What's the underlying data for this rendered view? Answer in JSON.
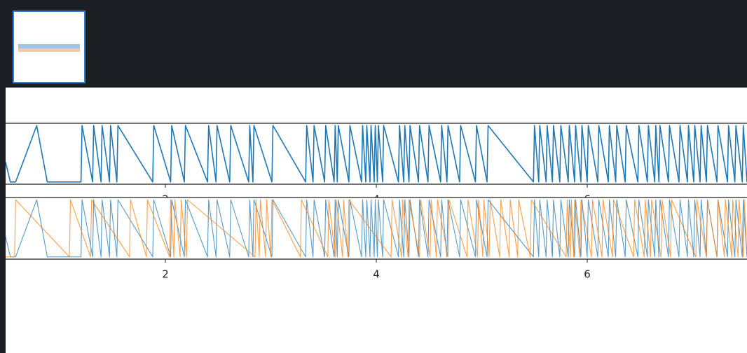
{
  "chart_data": [
    {
      "type": "line",
      "xlim": [
        0.485,
        7.515
      ],
      "ylim": [
        -0.04,
        1.04
      ],
      "xticks": [
        2,
        4,
        6
      ],
      "series": [
        {
          "color": "#1f77b4",
          "x": [
            0.485,
            0.53,
            0.58,
            0.78,
            0.88,
            1.2,
            1.21,
            1.31,
            1.32,
            1.39,
            1.4,
            1.47,
            1.48,
            1.54,
            1.55,
            1.88,
            1.89,
            2.05,
            2.06,
            2.18,
            2.19,
            2.4,
            2.41,
            2.48,
            2.49,
            2.61,
            2.62,
            2.79,
            2.8,
            2.83,
            2.84,
            3.01,
            3.02,
            3.33,
            3.34,
            3.4,
            3.41,
            3.51,
            3.52,
            3.6,
            3.61,
            3.63,
            3.64,
            3.74,
            3.75,
            3.86,
            3.87,
            3.9,
            3.91,
            3.94,
            3.95,
            3.98,
            3.99,
            4.01,
            4.02,
            4.06,
            4.07,
            4.21,
            4.22,
            4.26,
            4.27,
            4.31,
            4.32,
            4.4,
            4.41,
            4.49,
            4.5,
            4.61,
            4.62,
            4.67,
            4.68,
            4.79,
            4.8,
            4.94,
            4.95,
            5.05,
            5.06,
            5.49,
            5.5,
            5.54,
            5.55,
            5.61,
            5.62,
            5.67,
            5.68,
            5.74,
            5.75,
            5.82,
            5.83,
            5.88,
            5.89,
            5.94,
            5.95,
            6.0,
            6.01,
            6.1,
            6.11,
            6.2,
            6.21,
            6.27,
            6.28,
            6.36,
            6.37,
            6.48,
            6.49,
            6.57,
            6.58,
            6.64,
            6.65,
            6.68,
            6.69,
            6.77,
            6.78,
            6.87,
            6.88,
            6.95,
            6.96,
            7.01,
            7.02,
            7.07,
            7.08,
            7.13,
            7.14,
            7.23,
            7.24,
            7.33,
            7.34,
            7.4,
            7.41,
            7.47,
            7.48,
            7.515
          ],
          "values": [
            0.35,
            0,
            0,
            1,
            0,
            0,
            1,
            0,
            1,
            0,
            1,
            0,
            1,
            0,
            1,
            0,
            1,
            0,
            1,
            0,
            1,
            0,
            1,
            0,
            1,
            0,
            1,
            0,
            1,
            0,
            1,
            0,
            1,
            0,
            1,
            0,
            1,
            0,
            1,
            0,
            1,
            0,
            1,
            0,
            1,
            0,
            1,
            0,
            1,
            0,
            1,
            0,
            1,
            0,
            1,
            0,
            1,
            0,
            1,
            0,
            1,
            0,
            1,
            0,
            1,
            0,
            1,
            0,
            1,
            0,
            1,
            0,
            1,
            0,
            1,
            0,
            1,
            0,
            1,
            0,
            1,
            0,
            1,
            0,
            1,
            0,
            1,
            0,
            1,
            0,
            1,
            0,
            1,
            0,
            1,
            0,
            1,
            0,
            1,
            0,
            1,
            0,
            1,
            0,
            1,
            0,
            1,
            0,
            1,
            0,
            1,
            0,
            1,
            0,
            1,
            0,
            1,
            0,
            1,
            0,
            1,
            0,
            1,
            0,
            1,
            0,
            1,
            0,
            1,
            0,
            1,
            0
          ]
        }
      ]
    },
    {
      "type": "line",
      "xlim": [
        0.485,
        7.515
      ],
      "ylim": [
        -0.04,
        1.04
      ],
      "xticks": [
        2,
        4,
        6
      ],
      "series": [
        {
          "color": "#1f77b4",
          "x": [
            0.485,
            0.53,
            0.58,
            0.78,
            0.88,
            1.2,
            1.21,
            1.31,
            1.32,
            1.39,
            1.4,
            1.47,
            1.48,
            1.54,
            1.55,
            1.88,
            1.89,
            2.05,
            2.06,
            2.18,
            2.19,
            2.4,
            2.41,
            2.48,
            2.49,
            2.61,
            2.62,
            2.79,
            2.8,
            2.83,
            2.84,
            3.01,
            3.02,
            3.33,
            3.34,
            3.4,
            3.41,
            3.51,
            3.52,
            3.6,
            3.61,
            3.63,
            3.64,
            3.74,
            3.75,
            3.86,
            3.87,
            3.9,
            3.91,
            3.94,
            3.95,
            3.98,
            3.99,
            4.01,
            4.02,
            4.06,
            4.07,
            4.21,
            4.22,
            4.26,
            4.27,
            4.31,
            4.32,
            4.4,
            4.41,
            4.49,
            4.5,
            4.61,
            4.62,
            4.67,
            4.68,
            4.79,
            4.8,
            4.94,
            4.95,
            5.05,
            5.06,
            5.49,
            5.5,
            5.54,
            5.55,
            5.61,
            5.62,
            5.67,
            5.68,
            5.74,
            5.75,
            5.82,
            5.83,
            5.88,
            5.89,
            5.94,
            5.95,
            6.0,
            6.01,
            6.1,
            6.11,
            6.2,
            6.21,
            6.27,
            6.28,
            6.36,
            6.37,
            6.48,
            6.49,
            6.57,
            6.58,
            6.64,
            6.65,
            6.68,
            6.69,
            6.77,
            6.78,
            6.87,
            6.88,
            6.95,
            6.96,
            7.01,
            7.02,
            7.07,
            7.08,
            7.13,
            7.14,
            7.23,
            7.24,
            7.33,
            7.34,
            7.4,
            7.41,
            7.47,
            7.48,
            7.515
          ],
          "values": [
            0.35,
            0,
            0,
            1,
            0,
            0,
            1,
            0,
            1,
            0,
            1,
            0,
            1,
            0,
            1,
            0,
            1,
            0,
            1,
            0,
            1,
            0,
            1,
            0,
            1,
            0,
            1,
            0,
            1,
            0,
            1,
            0,
            1,
            0,
            1,
            0,
            1,
            0,
            1,
            0,
            1,
            0,
            1,
            0,
            1,
            0,
            1,
            0,
            1,
            0,
            1,
            0,
            1,
            0,
            1,
            0,
            1,
            0,
            1,
            0,
            1,
            0,
            1,
            0,
            1,
            0,
            1,
            0,
            1,
            0,
            1,
            0,
            1,
            0,
            1,
            0,
            1,
            0,
            1,
            0,
            1,
            0,
            1,
            0,
            1,
            0,
            1,
            0,
            1,
            0,
            1,
            0,
            1,
            0,
            1,
            0,
            1,
            0,
            1,
            0,
            1,
            0,
            1,
            0,
            1,
            0,
            1,
            0,
            1,
            0,
            1,
            0,
            1,
            0,
            1,
            0,
            1,
            0,
            1,
            0,
            1,
            0,
            1,
            0,
            1,
            0,
            1,
            0,
            1,
            0,
            1,
            0
          ]
        },
        {
          "color": "#ff7f0e",
          "x": [
            0.485,
            0.57,
            0.58,
            1.09,
            1.1,
            1.29,
            1.3,
            1.66,
            1.67,
            1.82,
            1.83,
            2.04,
            2.05,
            2.08,
            2.09,
            2.14,
            2.15,
            2.2,
            2.21,
            2.85,
            2.86,
            2.89,
            2.9,
            2.95,
            2.96,
            3.0,
            3.01,
            3.28,
            3.29,
            3.54,
            3.55,
            3.61,
            3.62,
            3.68,
            3.69,
            3.73,
            3.74,
            4.14,
            4.15,
            4.24,
            4.25,
            4.3,
            4.31,
            4.41,
            4.42,
            4.51,
            4.52,
            4.57,
            4.58,
            4.68,
            4.69,
            4.86,
            4.87,
            4.96,
            4.97,
            5.01,
            5.02,
            5.07,
            5.08,
            5.17,
            5.18,
            5.26,
            5.27,
            5.34,
            5.35,
            5.46,
            5.47,
            5.8,
            5.81,
            5.84,
            5.85,
            5.87,
            5.88,
            5.93,
            5.94,
            6.04,
            6.05,
            6.14,
            6.15,
            6.24,
            6.25,
            6.44,
            6.45,
            6.54,
            6.55,
            6.6,
            6.61,
            6.7,
            6.71,
            6.79,
            6.8,
            7.03,
            7.04,
            7.13,
            7.14,
            7.23,
            7.24,
            7.3,
            7.31,
            7.37,
            7.38,
            7.43,
            7.44,
            7.48,
            7.49,
            7.515
          ],
          "values": [
            0,
            0,
            1,
            0,
            1,
            0,
            1,
            0,
            1,
            0,
            1,
            0,
            1,
            0,
            1,
            0,
            1,
            0,
            1,
            0,
            1,
            0,
            1,
            0,
            1,
            0,
            1,
            0,
            1,
            0,
            1,
            0,
            1,
            0,
            1,
            0,
            1,
            0,
            1,
            0,
            1,
            0,
            1,
            0,
            1,
            0,
            1,
            0,
            1,
            0,
            1,
            0,
            1,
            0,
            1,
            0,
            1,
            0,
            1,
            0,
            1,
            0,
            1,
            0,
            1,
            0,
            1,
            0,
            1,
            0,
            1,
            0,
            1,
            0,
            1,
            0,
            1,
            0,
            1,
            0,
            1,
            0,
            1,
            0,
            1,
            0,
            1,
            0,
            1,
            0,
            1,
            0,
            1,
            0,
            1,
            0,
            1,
            0,
            1,
            0,
            1,
            0,
            1,
            0,
            1,
            0
          ]
        }
      ]
    }
  ]
}
